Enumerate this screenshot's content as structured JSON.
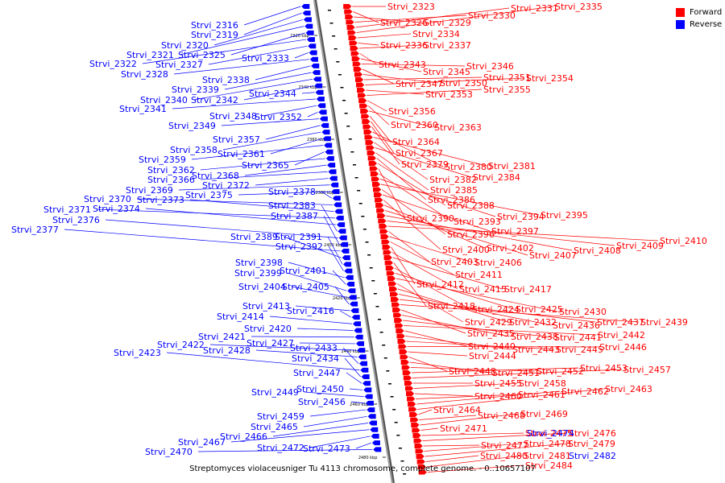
{
  "caption": "Streptomyces violaceusniger Tu 4113 chromosome, complete genome. - 0..10657107",
  "legend": [
    {
      "label": "Forward",
      "color": "#ff0000"
    },
    {
      "label": "Reverse",
      "color": "#0000ff"
    }
  ],
  "colors": {
    "forward": "#ff0000",
    "reverse": "#0000ff",
    "axis": "#888888"
  },
  "scale_ticks": [
    "2320 kbp",
    "2340 kbp",
    "2360 kbp",
    "2380 kbp",
    "2400 kbp",
    "2420 kbp",
    "2440 kbp",
    "2460 kbp",
    "2480 kbp"
  ],
  "forward_genes": [
    "Strvi_2323",
    "Strvi_2326",
    "Strvi_2329",
    "Strvi_2330",
    "Strvi_2331",
    "Strvi_2335",
    "Strvi_2334",
    "Strvi_2336",
    "Strvi_2337",
    "Strvi_2343",
    "Strvi_2345",
    "Strvi_2346",
    "Strvi_2347",
    "Strvi_2350",
    "Strvi_2351",
    "Strvi_2354",
    "Strvi_2353",
    "Strvi_2355",
    "Strvi_2356",
    "Strvi_2360",
    "Strvi_2363",
    "Strvi_2364",
    "Strvi_2367",
    "Strvi_2379",
    "Strvi_2380",
    "Strvi_2381",
    "Strvi_2382",
    "Strvi_2384",
    "Strvi_2385",
    "Strvi_2386",
    "Strvi_2388",
    "Strvi_2390",
    "Strvi_2393",
    "Strvi_2394",
    "Strvi_2395",
    "Strvi_2396",
    "Strvi_2397",
    "Strvi_2400",
    "Strvi_2402",
    "Strvi_2407",
    "Strvi_2408",
    "Strvi_2409",
    "Strvi_2410",
    "Strvi_2403",
    "Strvi_2406",
    "Strvi_2411",
    "Strvi_2412",
    "Strvi_2415",
    "Strvi_2417",
    "Strvi_2418",
    "Strvi_2424",
    "Strvi_2425",
    "Strvi_2430",
    "Strvi_2429",
    "Strvi_2432",
    "Strvi_2436",
    "Strvi_2437",
    "Strvi_2439",
    "Strvi_2435",
    "Strvi_2438",
    "Strvi_2441",
    "Strvi_2442",
    "Strvi_2440",
    "Strvi_2443",
    "Strvi_2445",
    "Strvi_2446",
    "Strvi_2444",
    "Strvi_2448",
    "Strvi_2451",
    "Strvi_2452",
    "Strvi_2453",
    "Strvi_2457",
    "Strvi_2455",
    "Strvi_2458",
    "Strvi_2460",
    "Strvi_2461",
    "Strvi_2462",
    "Strvi_2463",
    "Strvi_2464",
    "Strvi_2468",
    "Strvi_2469",
    "Strvi_2471",
    "Strvi_2475",
    "Strvi_2476",
    "Strvi_2477",
    "Strvi_2478",
    "Strvi_2479",
    "Strvi_2480",
    "Strvi_2481",
    "Strvi_2484"
  ],
  "reverse_genes": [
    "Strvi_2316",
    "Strvi_2319",
    "Strvi_2320",
    "Strvi_2321",
    "Strvi_2325",
    "Strvi_2322",
    "Strvi_2327",
    "Strvi_2333",
    "Strvi_2328",
    "Strvi_2338",
    "Strvi_2339",
    "Strvi_2340",
    "Strvi_2342",
    "Strvi_2344",
    "Strvi_2341",
    "Strvi_2348",
    "Strvi_2352",
    "Strvi_2349",
    "Strvi_2357",
    "Strvi_2358",
    "Strvi_2361",
    "Strvi_2359",
    "Strvi_2365",
    "Strvi_2362",
    "Strvi_2368",
    "Strvi_2366",
    "Strvi_2372",
    "Strvi_2369",
    "Strvi_2375",
    "Strvi_2378",
    "Strvi_2370",
    "Strvi_2373",
    "Strvi_2371",
    "Strvi_2374",
    "Strvi_2383",
    "Strvi_2376",
    "Strvi_2387",
    "Strvi_2377",
    "Strvi_2389",
    "Strvi_2391",
    "Strvi_2392",
    "Strvi_2398",
    "Strvi_2401",
    "Strvi_2399",
    "Strvi_2404",
    "Strvi_2405",
    "Strvi_2413",
    "Strvi_2416",
    "Strvi_2414",
    "Strvi_2420",
    "Strvi_2421",
    "Strvi_2427",
    "Strvi_2422",
    "Strvi_2428",
    "Strvi_2433",
    "Strvi_2423",
    "Strvi_2434",
    "Strvi_2447",
    "Strvi_2450",
    "Strvi_2449",
    "Strvi_2456",
    "Strvi_2459",
    "Strvi_2465",
    "Strvi_2466",
    "Strvi_2467",
    "Strvi_2472",
    "Strvi_2473",
    "Strvi_2470",
    "Strvi_2474",
    "Strvi_2482"
  ]
}
